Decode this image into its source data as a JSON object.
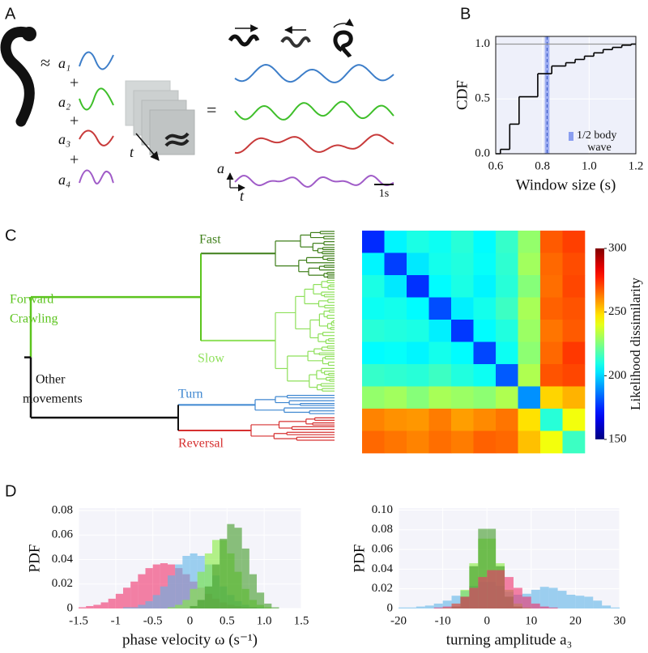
{
  "panel_labels": [
    "A",
    "B",
    "C",
    "D"
  ],
  "panel_a": {
    "approx": "≈",
    "coefficients": [
      "a₁",
      "a₂",
      "a₃",
      "a₄"
    ],
    "plus": [
      "+",
      "+",
      "+"
    ],
    "equals": "=",
    "time_arrow": "t",
    "vector": "a⃗",
    "time_axis": "t",
    "scale_bar": "1s"
  },
  "dendrogram": {
    "fast": "Fast",
    "forward": [
      "Forward",
      "Crawling"
    ],
    "slow": "Slow",
    "other": [
      "Other",
      "movements"
    ],
    "turn": "Turn",
    "reversal": "Reversal"
  },
  "chart_data": [
    {
      "type": "step",
      "xlabel": "Window size (s)",
      "ylabel": "CDF",
      "color": "#000000",
      "x": [
        0.62,
        0.66,
        0.7,
        0.78,
        0.84,
        0.9,
        0.94,
        0.98,
        1.02,
        1.06,
        1.1,
        1.14,
        1.18,
        1.2
      ],
      "y": [
        0.04,
        0.27,
        0.52,
        0.73,
        0.8,
        0.83,
        0.86,
        0.89,
        0.92,
        0.95,
        0.97,
        0.99,
        1.0,
        1.0
      ],
      "xlim": [
        0.6,
        1.2
      ],
      "ylim": [
        0,
        1.07
      ],
      "xticks": [
        0.6,
        0.8,
        {
          "value": 1,
          "label": "1.0"
        },
        1.2
      ],
      "yticks": [
        {
          "value": 0,
          "label": "0.0"
        },
        0.5,
        {
          "value": 1,
          "label": "1.0"
        }
      ],
      "grid": true,
      "reference_line": 1,
      "band": {
        "x": [
          0.81,
          0.83
        ],
        "color": "#8a9ef0",
        "label": [
          "1/2 body",
          "wave"
        ]
      }
    },
    {
      "type": "heatmap",
      "colormap": "jet",
      "clim": [
        150,
        300
      ],
      "cticks": [
        150,
        200,
        250,
        300
      ],
      "colorbar_label": "Likelihood dissimilarity",
      "matrix": [
        [
          175,
          205,
          210,
          208,
          212,
          206,
          214,
          228,
          268,
          272
        ],
        [
          205,
          178,
          203,
          209,
          211,
          207,
          213,
          230,
          266,
          270
        ],
        [
          210,
          203,
          176,
          206,
          210,
          205,
          212,
          226,
          265,
          271
        ],
        [
          208,
          209,
          206,
          180,
          204,
          209,
          215,
          231,
          267,
          269
        ],
        [
          212,
          211,
          210,
          204,
          177,
          206,
          211,
          229,
          264,
          268
        ],
        [
          206,
          207,
          205,
          209,
          206,
          179,
          208,
          227,
          266,
          273
        ],
        [
          214,
          213,
          212,
          215,
          211,
          208,
          182,
          232,
          269,
          271
        ],
        [
          228,
          230,
          226,
          231,
          229,
          227,
          232,
          190,
          250,
          255
        ],
        [
          262,
          260,
          259,
          263,
          258,
          261,
          264,
          248,
          212,
          242
        ],
        [
          266,
          264,
          262,
          265,
          263,
          267,
          266,
          253,
          242,
          215
        ]
      ]
    },
    {
      "type": "histogram",
      "xlabel": "phase velocity ω (s⁻¹)",
      "ylabel": "PDF",
      "grid": true,
      "alpha": 0.6,
      "xlim": [
        -1.5,
        1.5
      ],
      "ylim": [
        0,
        0.082
      ],
      "xticks": [
        -1.5,
        -1,
        -0.5,
        0,
        0.5,
        {
          "value": 1,
          "label": "1.0"
        },
        1.5
      ],
      "yticks": [
        0,
        0.02,
        0.04,
        0.06,
        0.08
      ],
      "bins": [
        -1.5,
        -1.4,
        -1.3,
        -1.2,
        -1.1,
        -1,
        -0.9,
        -0.8,
        -0.7,
        -0.6,
        -0.5,
        -0.4,
        -0.3,
        -0.2,
        -0.1,
        0,
        0.1,
        0.2,
        0.3,
        0.4,
        0.5,
        0.6,
        0.7,
        0.8,
        0.9,
        1,
        1.1,
        1.2,
        1.3,
        1.4,
        1.5
      ],
      "series": [
        {
          "color": "#f0306a",
          "values": [
            0.001,
            0.002,
            0.003,
            0.005,
            0.008,
            0.012,
            0.017,
            0.022,
            0.028,
            0.033,
            0.036,
            0.037,
            0.036,
            0.033,
            0.028,
            0.022,
            0.017,
            0.012,
            0.008,
            0.005,
            0.003,
            0.002,
            0.001,
            0.001,
            0,
            0,
            0,
            0,
            0,
            0
          ]
        },
        {
          "color": "#5fb4e8",
          "values": [
            0,
            0,
            0,
            0,
            0,
            0,
            0.001,
            0.001,
            0.003,
            0.006,
            0.011,
            0.018,
            0.027,
            0.036,
            0.043,
            0.045,
            0.043,
            0.036,
            0.027,
            0.018,
            0.011,
            0.006,
            0.003,
            0.001,
            0.001,
            0,
            0,
            0,
            0,
            0
          ]
        },
        {
          "color": "#86ec3c",
          "values": [
            0,
            0,
            0,
            0,
            0,
            0,
            0,
            0,
            0,
            0,
            0,
            0,
            0.001,
            0.003,
            0.007,
            0.016,
            0.03,
            0.045,
            0.056,
            0.056,
            0.045,
            0.03,
            0.016,
            0.007,
            0.003,
            0.001,
            0,
            0,
            0,
            0
          ]
        },
        {
          "color": "#3f9a26",
          "values": [
            0,
            0,
            0,
            0,
            0,
            0,
            0,
            0,
            0,
            0,
            0,
            0,
            0,
            0,
            0,
            0.002,
            0.007,
            0.018,
            0.036,
            0.057,
            0.069,
            0.066,
            0.049,
            0.028,
            0.013,
            0.004,
            0.001,
            0,
            0,
            0
          ]
        }
      ]
    },
    {
      "type": "histogram",
      "xlabel": "turning amplitude a₃",
      "ylabel": "PDF",
      "grid": true,
      "alpha": 0.6,
      "xlim": [
        -20,
        30
      ],
      "ylim": [
        0,
        0.102
      ],
      "xticks": [
        -20,
        -10,
        0,
        10,
        20,
        30
      ],
      "yticks": [
        0,
        0.02,
        0.04,
        0.06,
        0.08,
        {
          "value": 0.1,
          "label": "0.10"
        }
      ],
      "bins": [
        -20,
        -18,
        -16,
        -14,
        -12,
        -10,
        -8,
        -6,
        -4,
        -2,
        0,
        2,
        4,
        6,
        8,
        10,
        12,
        14,
        16,
        18,
        20,
        22,
        24,
        26,
        28,
        30
      ],
      "series": [
        {
          "color": "#5fb4e8",
          "values": [
            0.001,
            0.001,
            0.002,
            0.003,
            0.005,
            0.008,
            0.013,
            0.018,
            0.023,
            0.027,
            0.027,
            0.023,
            0.017,
            0.014,
            0.015,
            0.019,
            0.022,
            0.021,
            0.018,
            0.014,
            0.013,
            0.012,
            0.008,
            0.003,
            0.001
          ]
        },
        {
          "color": "#86ec3c",
          "values": [
            0,
            0,
            0,
            0,
            0,
            0.001,
            0.005,
            0.019,
            0.046,
            0.071,
            0.071,
            0.046,
            0.019,
            0.005,
            0.001,
            0,
            0,
            0,
            0,
            0,
            0,
            0,
            0,
            0,
            0
          ]
        },
        {
          "color": "#3f9a26",
          "values": [
            0,
            0,
            0,
            0,
            0,
            0,
            0.002,
            0.012,
            0.043,
            0.081,
            0.081,
            0.043,
            0.012,
            0.002,
            0,
            0,
            0,
            0,
            0,
            0,
            0,
            0,
            0,
            0,
            0
          ]
        },
        {
          "color": "#f0306a",
          "values": [
            0,
            0,
            0,
            0,
            0.001,
            0.002,
            0.005,
            0.012,
            0.021,
            0.032,
            0.039,
            0.039,
            0.032,
            0.021,
            0.012,
            0.005,
            0.002,
            0.001,
            0,
            0,
            0,
            0,
            0,
            0,
            0
          ]
        }
      ]
    }
  ]
}
